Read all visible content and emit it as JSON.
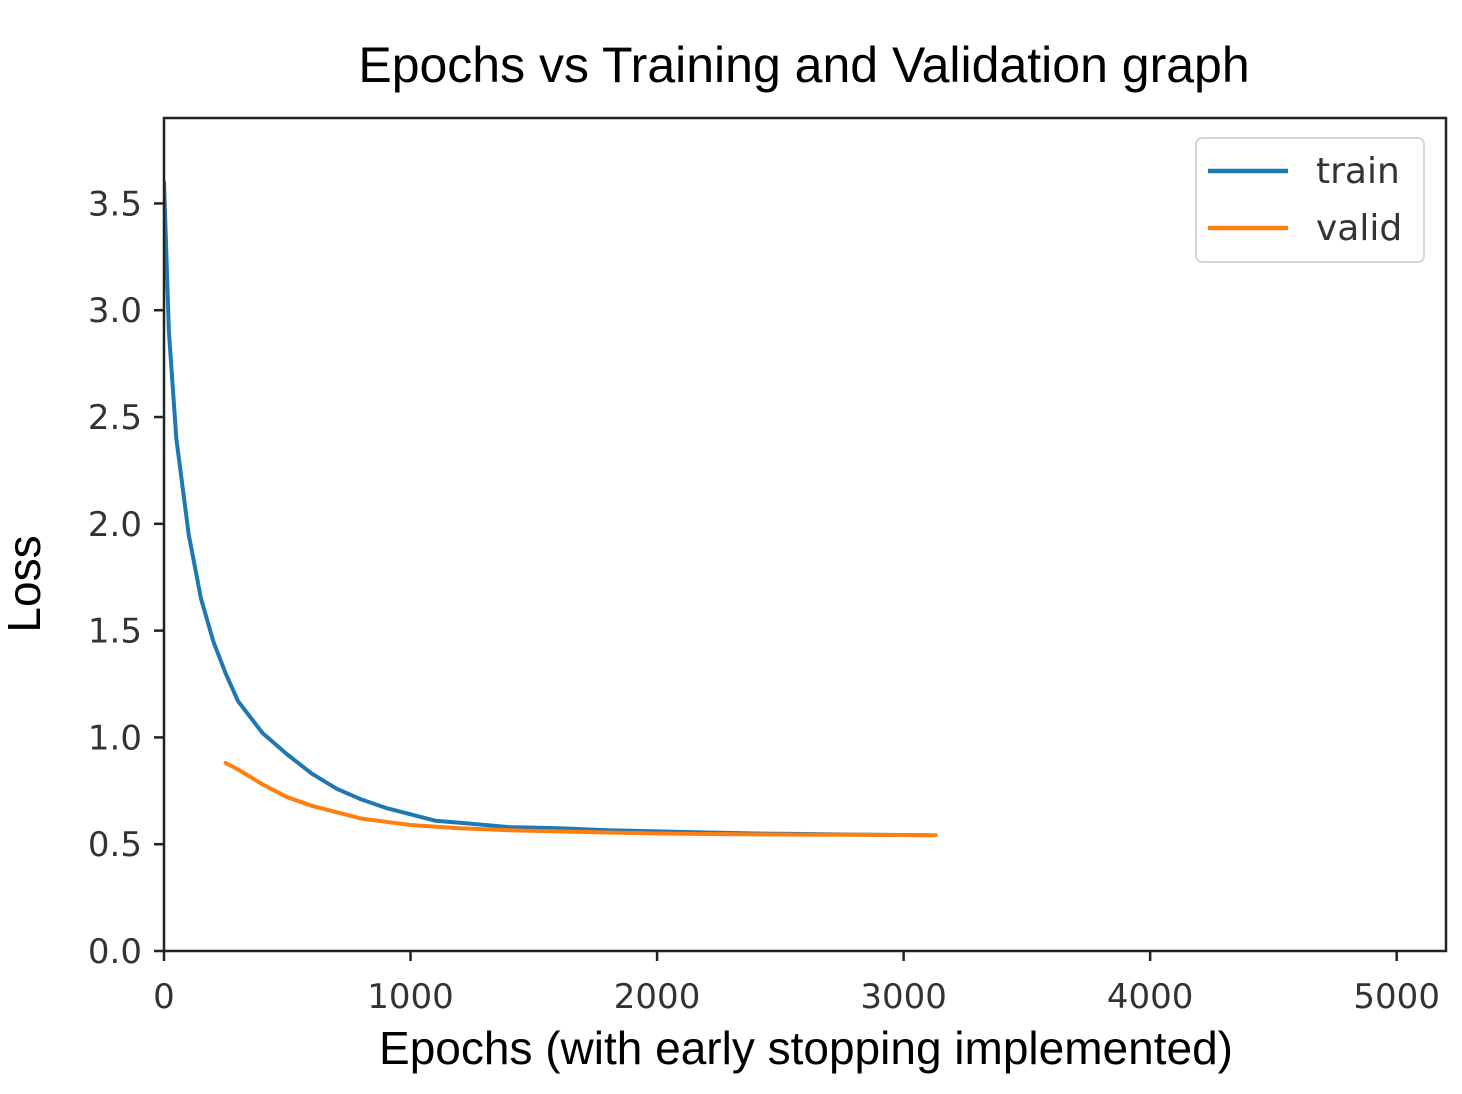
{
  "chart_data": {
    "type": "line",
    "title": "Epochs vs Training and Validation graph",
    "xlabel": "Epochs (with early stopping implemented)",
    "ylabel": "Loss",
    "xlim": [
      0,
      5200
    ],
    "ylim": [
      0,
      3.9
    ],
    "xticks": [
      0,
      1000,
      2000,
      3000,
      4000,
      5000
    ],
    "xtick_labels": [
      "0",
      "1000",
      "2000",
      "3000",
      "4000",
      "5000"
    ],
    "yticks": [
      0.0,
      0.5,
      1.0,
      1.5,
      2.0,
      2.5,
      3.0,
      3.5
    ],
    "ytick_labels": [
      "0.0",
      "0.5",
      "1.0",
      "1.5",
      "2.0",
      "2.5",
      "3.0",
      "3.5"
    ],
    "grid": false,
    "legend_position": "top-right",
    "series": [
      {
        "name": "train",
        "color": "#1f77b4",
        "x": [
          0,
          20,
          50,
          100,
          150,
          200,
          250,
          300,
          400,
          500,
          600,
          700,
          800,
          900,
          1000,
          1100,
          1200,
          1400,
          1600,
          1800,
          2000,
          2200,
          2400,
          2600,
          2800,
          3000,
          3100
        ],
        "y": [
          3.6,
          2.9,
          2.4,
          1.95,
          1.65,
          1.45,
          1.3,
          1.17,
          1.02,
          0.92,
          0.83,
          0.76,
          0.71,
          0.67,
          0.64,
          0.61,
          0.6,
          0.58,
          0.575,
          0.565,
          0.56,
          0.555,
          0.55,
          0.548,
          0.545,
          0.543,
          0.542
        ]
      },
      {
        "name": "valid",
        "color": "#ff7f0e",
        "x": [
          250,
          300,
          400,
          500,
          600,
          700,
          800,
          900,
          1000,
          1200,
          1400,
          1600,
          1800,
          2000,
          2200,
          2400,
          2600,
          2800,
          3000,
          3130
        ],
        "y": [
          0.88,
          0.85,
          0.78,
          0.72,
          0.68,
          0.65,
          0.62,
          0.605,
          0.59,
          0.575,
          0.565,
          0.56,
          0.555,
          0.55,
          0.548,
          0.546,
          0.545,
          0.544,
          0.543,
          0.542
        ]
      }
    ]
  }
}
